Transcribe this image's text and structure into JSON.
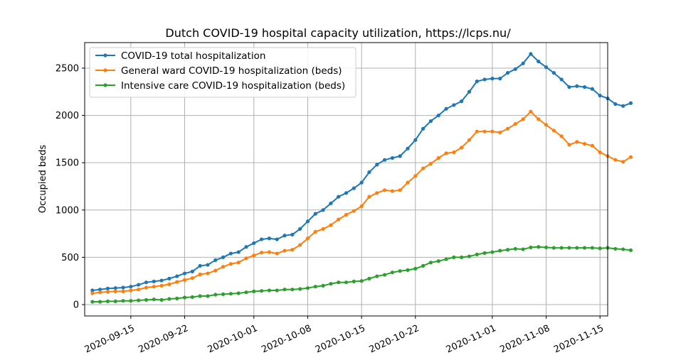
{
  "chart_data": {
    "type": "line",
    "title": "Dutch COVID-19 hospital capacity utilization, https://lcps.nu/",
    "xlabel": "",
    "ylabel": "Occupied beds",
    "x_start": "2020-09-10",
    "x_end": "2020-11-16",
    "xlim": [
      "2020-09-09",
      "2020-11-16"
    ],
    "ylim": [
      -120,
      2770
    ],
    "grid": true,
    "legend_position": "upper left",
    "x_ticks": [
      "2020-09-15",
      "2020-09-22",
      "2020-10-01",
      "2020-10-08",
      "2020-10-15",
      "2020-10-22",
      "2020-11-01",
      "2020-11-08",
      "2020-11-15"
    ],
    "y_ticks": [
      "0",
      "500",
      "1000",
      "1500",
      "2000",
      "2500"
    ],
    "series": [
      {
        "name": "COVID-19 total hospitalization",
        "color": "#1f77b4",
        "values": [
          150,
          160,
          170,
          175,
          180,
          190,
          210,
          235,
          245,
          255,
          275,
          300,
          330,
          350,
          410,
          420,
          470,
          500,
          540,
          555,
          610,
          650,
          690,
          700,
          690,
          730,
          740,
          800,
          880,
          960,
          1000,
          1070,
          1140,
          1180,
          1230,
          1290,
          1400,
          1480,
          1530,
          1550,
          1570,
          1650,
          1740,
          1860,
          1940,
          2000,
          2070,
          2110,
          2150,
          2250,
          2360,
          2380,
          2390,
          2390,
          2450,
          2490,
          2550,
          2650,
          2570,
          2510,
          2450,
          2380,
          2300,
          2310,
          2300,
          2280,
          2210,
          2180,
          2120,
          2100,
          2130
        ]
      },
      {
        "name": "General ward COVID-19 hospitalization (beds)",
        "color": "#ff7f0e",
        "values": [
          120,
          130,
          135,
          140,
          140,
          150,
          160,
          180,
          190,
          200,
          215,
          240,
          260,
          280,
          320,
          330,
          360,
          400,
          430,
          445,
          490,
          520,
          550,
          555,
          540,
          570,
          580,
          630,
          700,
          770,
          800,
          840,
          900,
          950,
          990,
          1040,
          1140,
          1180,
          1210,
          1200,
          1210,
          1290,
          1360,
          1440,
          1490,
          1550,
          1600,
          1610,
          1660,
          1740,
          1830,
          1830,
          1830,
          1820,
          1860,
          1910,
          1960,
          2040,
          1960,
          1900,
          1840,
          1780,
          1690,
          1720,
          1700,
          1680,
          1610,
          1570,
          1530,
          1510,
          1560
        ]
      },
      {
        "name": "Intensive care COVID-19 hospitalization (beds)",
        "color": "#2ca02c",
        "values": [
          30,
          30,
          35,
          35,
          40,
          40,
          45,
          50,
          55,
          50,
          60,
          65,
          75,
          80,
          90,
          90,
          105,
          110,
          115,
          120,
          130,
          140,
          145,
          150,
          150,
          160,
          160,
          165,
          175,
          190,
          200,
          220,
          235,
          235,
          245,
          250,
          275,
          300,
          315,
          340,
          355,
          365,
          380,
          410,
          445,
          460,
          480,
          500,
          500,
          510,
          530,
          545,
          555,
          570,
          580,
          590,
          585,
          605,
          610,
          605,
          600,
          600,
          600,
          600,
          600,
          600,
          595,
          600,
          590,
          585,
          575
        ]
      }
    ]
  }
}
